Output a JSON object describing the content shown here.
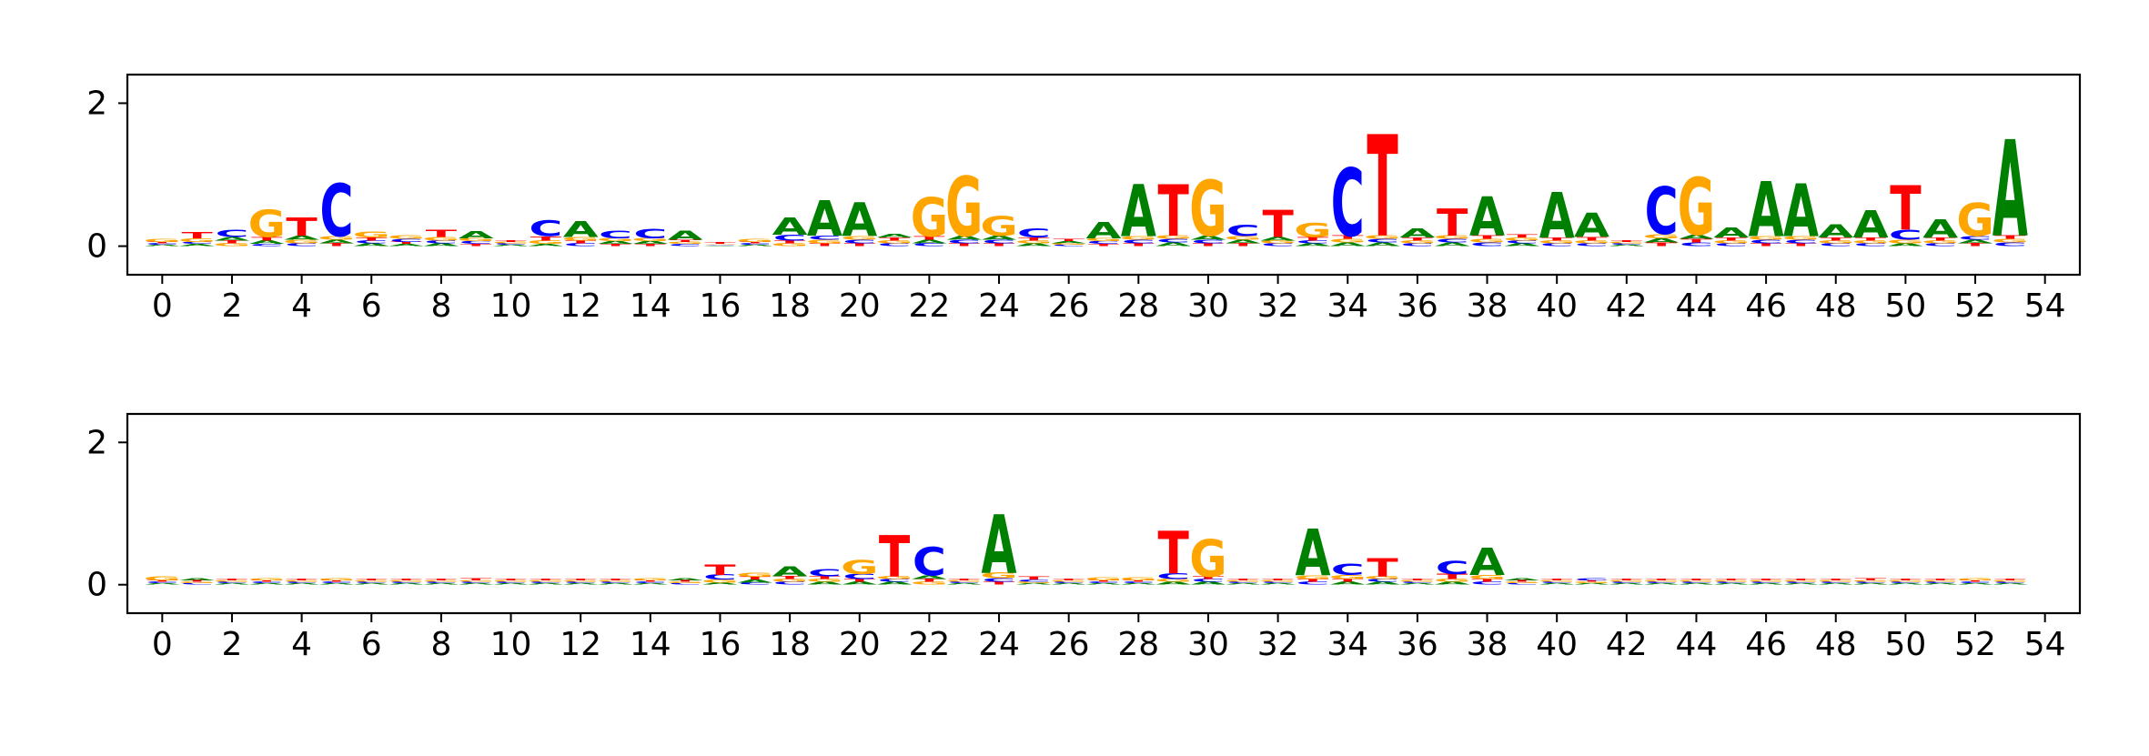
{
  "colors": {
    "A": "#008000",
    "C": "#0000ff",
    "G": "#ffa500",
    "T": "#ff0000",
    "axis": "#000000"
  },
  "chart_data": [
    {
      "type": "sequence-logo",
      "title": "",
      "xlabel": "",
      "ylabel": "",
      "xlim": [
        -1,
        55
      ],
      "ylim": [
        -0.4,
        2.4
      ],
      "xticks": [
        "0",
        "2",
        "4",
        "6",
        "8",
        "10",
        "12",
        "14",
        "16",
        "18",
        "20",
        "22",
        "24",
        "26",
        "28",
        "30",
        "32",
        "34",
        "36",
        "38",
        "40",
        "42",
        "44",
        "46",
        "48",
        "50",
        "52",
        "54"
      ],
      "yticks": [
        "0",
        "2"
      ],
      "positions": [
        {
          "x": 0,
          "letters": {
            "A": 0.02,
            "C": 0.02,
            "G": 0.04,
            "T": 0.02
          }
        },
        {
          "x": 1,
          "letters": {
            "A": 0.03,
            "C": 0.03,
            "G": 0.05,
            "T": 0.09
          }
        },
        {
          "x": 2,
          "letters": {
            "A": 0.05,
            "C": 0.1,
            "G": 0.04,
            "T": 0.04
          }
        },
        {
          "x": 3,
          "letters": {
            "A": 0.05,
            "C": 0.03,
            "G": 0.38,
            "T": 0.05
          }
        },
        {
          "x": 4,
          "letters": {
            "A": 0.06,
            "C": 0.04,
            "G": 0.05,
            "T": 0.26
          }
        },
        {
          "x": 5,
          "letters": {
            "A": 0.05,
            "C": 0.74,
            "G": 0.05,
            "T": 0.04
          }
        },
        {
          "x": 6,
          "letters": {
            "A": 0.04,
            "C": 0.04,
            "G": 0.08,
            "T": 0.04
          }
        },
        {
          "x": 7,
          "letters": {
            "A": 0.03,
            "C": 0.04,
            "G": 0.05,
            "T": 0.03
          }
        },
        {
          "x": 8,
          "letters": {
            "A": 0.04,
            "C": 0.04,
            "G": 0.05,
            "T": 0.1
          }
        },
        {
          "x": 9,
          "letters": {
            "A": 0.1,
            "C": 0.04,
            "G": 0.04,
            "T": 0.03
          }
        },
        {
          "x": 10,
          "letters": {
            "A": 0.02,
            "C": 0.02,
            "G": 0.02,
            "T": 0.02
          }
        },
        {
          "x": 11,
          "letters": {
            "A": 0.03,
            "C": 0.22,
            "G": 0.05,
            "T": 0.06
          }
        },
        {
          "x": 12,
          "letters": {
            "A": 0.22,
            "C": 0.04,
            "G": 0.05,
            "T": 0.04
          }
        },
        {
          "x": 13,
          "letters": {
            "A": 0.04,
            "C": 0.11,
            "G": 0.04,
            "T": 0.03
          }
        },
        {
          "x": 14,
          "letters": {
            "A": 0.04,
            "C": 0.13,
            "G": 0.04,
            "T": 0.03
          }
        },
        {
          "x": 15,
          "letters": {
            "A": 0.12,
            "C": 0.03,
            "G": 0.03,
            "T": 0.03
          }
        },
        {
          "x": 16,
          "letters": {
            "A": 0.01,
            "C": 0.01,
            "G": 0.01,
            "T": 0.02
          }
        },
        {
          "x": 17,
          "letters": {
            "A": 0.02,
            "C": 0.02,
            "G": 0.04,
            "T": 0.02
          }
        },
        {
          "x": 18,
          "letters": {
            "A": 0.24,
            "C": 0.08,
            "G": 0.04,
            "T": 0.04
          }
        },
        {
          "x": 19,
          "letters": {
            "A": 0.5,
            "C": 0.06,
            "G": 0.05,
            "T": 0.04
          }
        },
        {
          "x": 20,
          "letters": {
            "A": 0.47,
            "C": 0.05,
            "G": 0.05,
            "T": 0.04
          }
        },
        {
          "x": 21,
          "letters": {
            "A": 0.05,
            "C": 0.04,
            "G": 0.04,
            "T": 0.04
          }
        },
        {
          "x": 22,
          "letters": {
            "A": 0.05,
            "C": 0.04,
            "G": 0.55,
            "T": 0.05
          }
        },
        {
          "x": 23,
          "letters": {
            "A": 0.06,
            "C": 0.05,
            "G": 0.84,
            "T": 0.04
          }
        },
        {
          "x": 24,
          "letters": {
            "A": 0.06,
            "C": 0.05,
            "G": 0.27,
            "T": 0.04
          }
        },
        {
          "x": 25,
          "letters": {
            "A": 0.04,
            "C": 0.12,
            "G": 0.04,
            "T": 0.04
          }
        },
        {
          "x": 26,
          "letters": {
            "A": 0.03,
            "C": 0.02,
            "G": 0.02,
            "T": 0.03
          }
        },
        {
          "x": 27,
          "letters": {
            "A": 0.23,
            "C": 0.04,
            "G": 0.04,
            "T": 0.03
          }
        },
        {
          "x": 28,
          "letters": {
            "A": 0.73,
            "C": 0.05,
            "G": 0.05,
            "T": 0.04
          }
        },
        {
          "x": 29,
          "letters": {
            "A": 0.05,
            "C": 0.05,
            "G": 0.05,
            "T": 0.72
          }
        },
        {
          "x": 30,
          "letters": {
            "A": 0.06,
            "C": 0.05,
            "G": 0.78,
            "T": 0.04
          }
        },
        {
          "x": 31,
          "letters": {
            "A": 0.05,
            "C": 0.16,
            "G": 0.05,
            "T": 0.04
          }
        },
        {
          "x": 32,
          "letters": {
            "A": 0.05,
            "C": 0.04,
            "G": 0.04,
            "T": 0.38
          }
        },
        {
          "x": 33,
          "letters": {
            "A": 0.04,
            "C": 0.04,
            "G": 0.2,
            "T": 0.05
          }
        },
        {
          "x": 34,
          "letters": {
            "A": 0.05,
            "C": 0.95,
            "G": 0.05,
            "T": 0.05
          }
        },
        {
          "x": 35,
          "letters": {
            "A": 0.05,
            "C": 0.05,
            "G": 0.05,
            "T": 1.42
          }
        },
        {
          "x": 36,
          "letters": {
            "A": 0.12,
            "C": 0.04,
            "G": 0.04,
            "T": 0.04
          }
        },
        {
          "x": 37,
          "letters": {
            "A": 0.05,
            "C": 0.05,
            "G": 0.05,
            "T": 0.38
          }
        },
        {
          "x": 38,
          "letters": {
            "A": 0.55,
            "C": 0.05,
            "G": 0.05,
            "T": 0.05
          }
        },
        {
          "x": 39,
          "letters": {
            "A": 0.04,
            "C": 0.04,
            "G": 0.04,
            "T": 0.04
          }
        },
        {
          "x": 40,
          "letters": {
            "A": 0.64,
            "C": 0.04,
            "G": 0.04,
            "T": 0.04
          }
        },
        {
          "x": 41,
          "letters": {
            "A": 0.34,
            "C": 0.04,
            "G": 0.04,
            "T": 0.05
          }
        },
        {
          "x": 42,
          "letters": {
            "A": 0.02,
            "C": 0.02,
            "G": 0.02,
            "T": 0.02
          }
        },
        {
          "x": 43,
          "letters": {
            "A": 0.06,
            "C": 0.66,
            "G": 0.06,
            "T": 0.05
          }
        },
        {
          "x": 44,
          "letters": {
            "A": 0.06,
            "C": 0.05,
            "G": 0.8,
            "T": 0.05
          }
        },
        {
          "x": 45,
          "letters": {
            "A": 0.14,
            "C": 0.04,
            "G": 0.04,
            "T": 0.04
          }
        },
        {
          "x": 46,
          "letters": {
            "A": 0.77,
            "C": 0.05,
            "G": 0.05,
            "T": 0.04
          }
        },
        {
          "x": 47,
          "letters": {
            "A": 0.74,
            "C": 0.05,
            "G": 0.05,
            "T": 0.04
          }
        },
        {
          "x": 48,
          "letters": {
            "A": 0.18,
            "C": 0.04,
            "G": 0.04,
            "T": 0.04
          }
        },
        {
          "x": 49,
          "letters": {
            "A": 0.38,
            "C": 0.04,
            "G": 0.04,
            "T": 0.04
          }
        },
        {
          "x": 50,
          "letters": {
            "A": 0.04,
            "C": 0.14,
            "G": 0.05,
            "T": 0.62
          }
        },
        {
          "x": 51,
          "letters": {
            "A": 0.26,
            "C": 0.04,
            "G": 0.04,
            "T": 0.04
          }
        },
        {
          "x": 52,
          "letters": {
            "A": 0.05,
            "C": 0.05,
            "G": 0.46,
            "T": 0.04
          }
        },
        {
          "x": 53,
          "letters": {
            "A": 1.35,
            "C": 0.05,
            "G": 0.05,
            "T": 0.05
          }
        }
      ]
    },
    {
      "type": "sequence-logo",
      "title": "",
      "xlabel": "",
      "ylabel": "",
      "xlim": [
        -1,
        55
      ],
      "ylim": [
        -0.4,
        2.4
      ],
      "xticks": [
        "0",
        "2",
        "4",
        "6",
        "8",
        "10",
        "12",
        "14",
        "16",
        "18",
        "20",
        "22",
        "24",
        "26",
        "28",
        "30",
        "32",
        "34",
        "36",
        "38",
        "40",
        "42",
        "44",
        "46",
        "48",
        "50",
        "52",
        "54"
      ],
      "yticks": [
        "0",
        "2"
      ],
      "positions": [
        {
          "x": 0,
          "letters": {
            "A": 0.02,
            "C": 0.02,
            "G": 0.06,
            "T": 0.02
          }
        },
        {
          "x": 1,
          "letters": {
            "A": 0.03,
            "C": 0.02,
            "G": 0.02,
            "T": 0.02
          }
        },
        {
          "x": 2,
          "letters": {
            "A": 0.02,
            "C": 0.02,
            "G": 0.02,
            "T": 0.02
          }
        },
        {
          "x": 3,
          "letters": {
            "A": 0.02,
            "C": 0.02,
            "G": 0.03,
            "T": 0.02
          }
        },
        {
          "x": 4,
          "letters": {
            "A": 0.02,
            "C": 0.02,
            "G": 0.02,
            "T": 0.02
          }
        },
        {
          "x": 5,
          "letters": {
            "A": 0.02,
            "C": 0.02,
            "G": 0.03,
            "T": 0.02
          }
        },
        {
          "x": 6,
          "letters": {
            "A": 0.02,
            "C": 0.02,
            "G": 0.02,
            "T": 0.02
          }
        },
        {
          "x": 7,
          "letters": {
            "A": 0.02,
            "C": 0.02,
            "G": 0.02,
            "T": 0.02
          }
        },
        {
          "x": 8,
          "letters": {
            "A": 0.02,
            "C": 0.02,
            "G": 0.02,
            "T": 0.02
          }
        },
        {
          "x": 9,
          "letters": {
            "A": 0.02,
            "C": 0.02,
            "G": 0.02,
            "T": 0.03
          }
        },
        {
          "x": 10,
          "letters": {
            "A": 0.02,
            "C": 0.02,
            "G": 0.02,
            "T": 0.02
          }
        },
        {
          "x": 11,
          "letters": {
            "A": 0.02,
            "C": 0.02,
            "G": 0.02,
            "T": 0.02
          }
        },
        {
          "x": 12,
          "letters": {
            "A": 0.02,
            "C": 0.02,
            "G": 0.02,
            "T": 0.02
          }
        },
        {
          "x": 13,
          "letters": {
            "A": 0.02,
            "C": 0.02,
            "G": 0.02,
            "T": 0.02
          }
        },
        {
          "x": 14,
          "letters": {
            "A": 0.02,
            "C": 0.02,
            "G": 0.03,
            "T": 0.02
          }
        },
        {
          "x": 15,
          "letters": {
            "A": 0.03,
            "C": 0.02,
            "G": 0.02,
            "T": 0.02
          }
        },
        {
          "x": 16,
          "letters": {
            "A": 0.03,
            "C": 0.07,
            "G": 0.04,
            "T": 0.15
          }
        },
        {
          "x": 17,
          "letters": {
            "A": 0.04,
            "C": 0.03,
            "G": 0.06,
            "T": 0.04
          }
        },
        {
          "x": 18,
          "letters": {
            "A": 0.14,
            "C": 0.04,
            "G": 0.04,
            "T": 0.04
          }
        },
        {
          "x": 19,
          "letters": {
            "A": 0.04,
            "C": 0.1,
            "G": 0.04,
            "T": 0.04
          }
        },
        {
          "x": 20,
          "letters": {
            "A": 0.04,
            "C": 0.07,
            "G": 0.2,
            "T": 0.04
          }
        },
        {
          "x": 21,
          "letters": {
            "A": 0.04,
            "C": 0.04,
            "G": 0.04,
            "T": 0.58
          }
        },
        {
          "x": 22,
          "letters": {
            "A": 0.05,
            "C": 0.4,
            "G": 0.04,
            "T": 0.04
          }
        },
        {
          "x": 23,
          "letters": {
            "A": 0.02,
            "C": 0.02,
            "G": 0.02,
            "T": 0.02
          }
        },
        {
          "x": 24,
          "letters": {
            "A": 0.82,
            "C": 0.05,
            "G": 0.08,
            "T": 0.04
          }
        },
        {
          "x": 25,
          "letters": {
            "A": 0.02,
            "C": 0.03,
            "G": 0.02,
            "T": 0.04
          }
        },
        {
          "x": 26,
          "letters": {
            "A": 0.02,
            "C": 0.02,
            "G": 0.02,
            "T": 0.02
          }
        },
        {
          "x": 27,
          "letters": {
            "A": 0.02,
            "C": 0.02,
            "G": 0.04,
            "T": 0.02
          }
        },
        {
          "x": 28,
          "letters": {
            "A": 0.02,
            "C": 0.02,
            "G": 0.04,
            "T": 0.02
          }
        },
        {
          "x": 29,
          "letters": {
            "A": 0.04,
            "C": 0.08,
            "G": 0.04,
            "T": 0.6
          }
        },
        {
          "x": 30,
          "letters": {
            "A": 0.04,
            "C": 0.04,
            "G": 0.52,
            "T": 0.04
          }
        },
        {
          "x": 31,
          "letters": {
            "A": 0.02,
            "C": 0.02,
            "G": 0.02,
            "T": 0.02
          }
        },
        {
          "x": 32,
          "letters": {
            "A": 0.02,
            "C": 0.02,
            "G": 0.02,
            "T": 0.02
          }
        },
        {
          "x": 33,
          "letters": {
            "A": 0.66,
            "C": 0.04,
            "G": 0.05,
            "T": 0.04
          }
        },
        {
          "x": 34,
          "letters": {
            "A": 0.04,
            "C": 0.16,
            "G": 0.06,
            "T": 0.04
          }
        },
        {
          "x": 35,
          "letters": {
            "A": 0.04,
            "C": 0.04,
            "G": 0.04,
            "T": 0.26
          }
        },
        {
          "x": 36,
          "letters": {
            "A": 0.02,
            "C": 0.02,
            "G": 0.02,
            "T": 0.02
          }
        },
        {
          "x": 37,
          "letters": {
            "A": 0.04,
            "C": 0.18,
            "G": 0.04,
            "T": 0.07
          }
        },
        {
          "x": 38,
          "letters": {
            "A": 0.38,
            "C": 0.04,
            "G": 0.06,
            "T": 0.04
          }
        },
        {
          "x": 39,
          "letters": {
            "A": 0.03,
            "C": 0.02,
            "G": 0.02,
            "T": 0.02
          }
        },
        {
          "x": 40,
          "letters": {
            "A": 0.02,
            "C": 0.02,
            "G": 0.02,
            "T": 0.02
          }
        },
        {
          "x": 41,
          "letters": {
            "A": 0.02,
            "C": 0.03,
            "G": 0.02,
            "T": 0.02
          }
        },
        {
          "x": 42,
          "letters": {
            "A": 0.02,
            "C": 0.02,
            "G": 0.02,
            "T": 0.02
          }
        },
        {
          "x": 43,
          "letters": {
            "A": 0.02,
            "C": 0.02,
            "G": 0.02,
            "T": 0.02
          }
        },
        {
          "x": 44,
          "letters": {
            "A": 0.02,
            "C": 0.02,
            "G": 0.02,
            "T": 0.02
          }
        },
        {
          "x": 45,
          "letters": {
            "A": 0.02,
            "C": 0.02,
            "G": 0.02,
            "T": 0.02
          }
        },
        {
          "x": 46,
          "letters": {
            "A": 0.02,
            "C": 0.02,
            "G": 0.02,
            "T": 0.02
          }
        },
        {
          "x": 47,
          "letters": {
            "A": 0.02,
            "C": 0.02,
            "G": 0.02,
            "T": 0.02
          }
        },
        {
          "x": 48,
          "letters": {
            "A": 0.02,
            "C": 0.02,
            "G": 0.02,
            "T": 0.02
          }
        },
        {
          "x": 49,
          "letters": {
            "A": 0.02,
            "C": 0.02,
            "G": 0.02,
            "T": 0.03
          }
        },
        {
          "x": 50,
          "letters": {
            "A": 0.02,
            "C": 0.02,
            "G": 0.02,
            "T": 0.02
          }
        },
        {
          "x": 51,
          "letters": {
            "A": 0.02,
            "C": 0.02,
            "G": 0.02,
            "T": 0.02
          }
        },
        {
          "x": 52,
          "letters": {
            "A": 0.02,
            "C": 0.02,
            "G": 0.03,
            "T": 0.02
          }
        },
        {
          "x": 53,
          "letters": {
            "A": 0.02,
            "C": 0.02,
            "G": 0.02,
            "T": 0.02
          }
        }
      ]
    }
  ]
}
